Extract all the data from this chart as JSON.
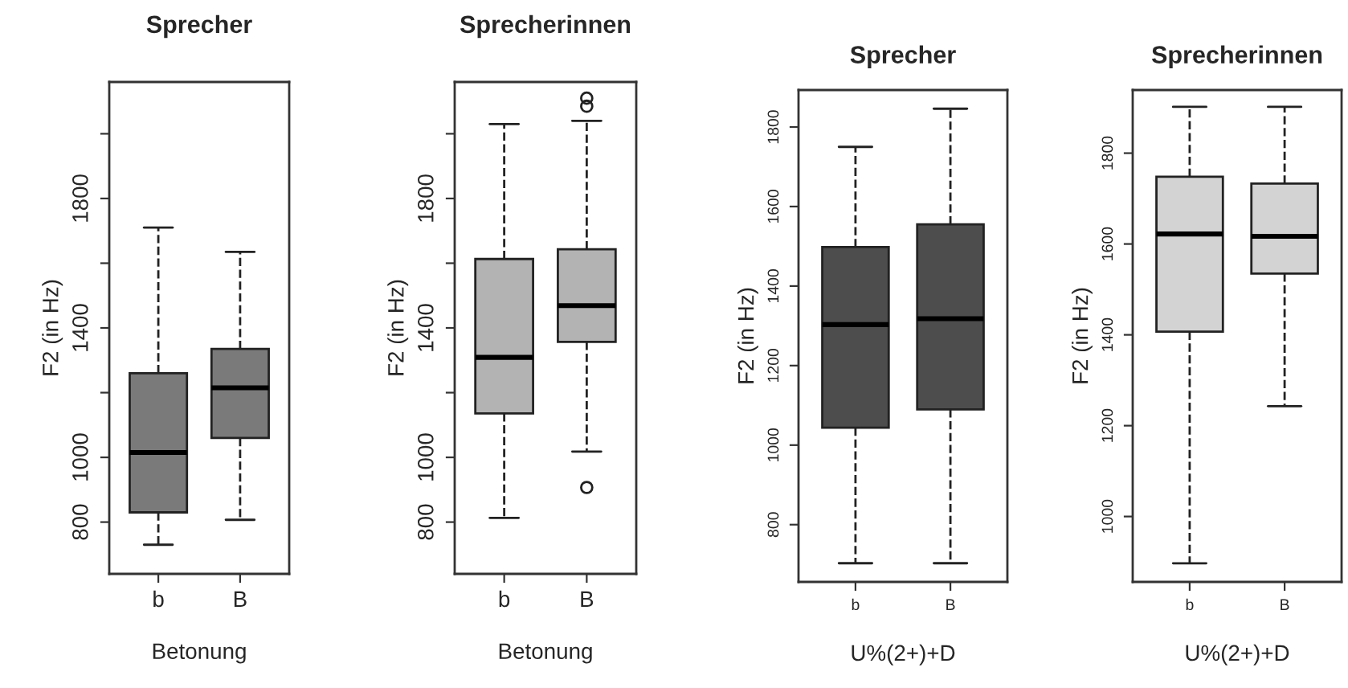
{
  "chart_data": [
    {
      "type": "box",
      "title": "Sprecher",
      "xlabel": "Betonung",
      "ylabel": "F2 (in Hz)",
      "categories": [
        "b",
        "B"
      ],
      "ylim": [
        640,
        2160
      ],
      "yticks": [
        800,
        1000,
        {
          "value": 1200,
          "label": null
        },
        1400,
        {
          "value": 1600,
          "label": null
        },
        1800,
        {
          "value": 2000,
          "label": null
        }
      ],
      "line_style": "dashed",
      "grid": false,
      "series": [
        {
          "color": "#7a7a7a",
          "boxes": [
            {
              "low": 730,
              "q1": 830,
              "median": 1015,
              "q3": 1260,
              "high": 1710
            },
            {
              "low": 807,
              "q1": 1060,
              "median": 1215,
              "q3": 1335,
              "high": 1635
            }
          ]
        }
      ]
    },
    {
      "type": "box",
      "title": "Sprecherinnen",
      "xlabel": "Betonung",
      "ylabel": "F2 (in Hz)",
      "categories": [
        "b",
        "B"
      ],
      "ylim": [
        640,
        2160
      ],
      "yticks": [
        800,
        1000,
        {
          "value": 1200,
          "label": null
        },
        1400,
        {
          "value": 1600,
          "label": null
        },
        1800,
        {
          "value": 2000,
          "label": null
        }
      ],
      "line_style": "dashed",
      "grid": false,
      "series": [
        {
          "color": "#b3b3b3",
          "boxes": [
            {
              "low": 813,
              "q1": 1136,
              "median": 1309,
              "q3": 1613,
              "high": 2030
            },
            {
              "low": 1018,
              "q1": 1357,
              "median": 1469,
              "q3": 1643,
              "high": 2040,
              "outliers": [
                907,
                2085,
                2110
              ]
            }
          ]
        }
      ]
    },
    {
      "type": "box",
      "title": "Sprecher",
      "xlabel": "U%(2+)+D",
      "ylabel": "F2 (in Hz)",
      "categories": [
        "b",
        "B"
      ],
      "ylim": [
        656,
        1893
      ],
      "yticks": [
        800,
        1000,
        1200,
        1400,
        1600,
        1800
      ],
      "line_style": "dashed",
      "grid": false,
      "series": [
        {
          "color": "#4d4d4d",
          "boxes": [
            {
              "low": 703,
              "q1": 1044,
              "median": 1303,
              "q3": 1498,
              "high": 1750
            },
            {
              "low": 703,
              "q1": 1090,
              "median": 1318,
              "q3": 1555,
              "high": 1846
            }
          ]
        }
      ]
    },
    {
      "type": "box",
      "title": "Sprecherinnen",
      "xlabel": "U%(2+)+D",
      "ylabel": "F2 (in Hz)",
      "categories": [
        "b",
        "B"
      ],
      "ylim": [
        856,
        1939
      ],
      "yticks": [
        1000,
        1200,
        1400,
        1600,
        1800
      ],
      "line_style": "dashed",
      "grid": false,
      "series": [
        {
          "color": "#d3d3d3",
          "boxes": [
            {
              "low": 897,
              "q1": 1407,
              "median": 1622,
              "q3": 1748,
              "high": 1902
            },
            {
              "low": 1243,
              "q1": 1535,
              "median": 1617,
              "q3": 1733,
              "high": 1902
            }
          ]
        }
      ]
    }
  ]
}
